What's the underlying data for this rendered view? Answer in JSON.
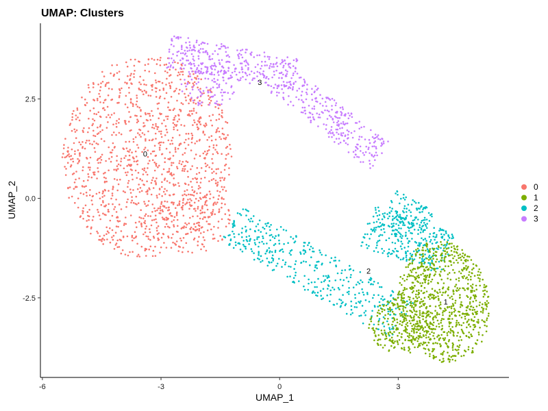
{
  "chart_data": {
    "type": "scatter",
    "title": "UMAP: Clusters",
    "xlabel": "UMAP_1",
    "ylabel": "UMAP_2",
    "xlim": [
      -6.05,
      5.8
    ],
    "ylim": [
      -4.5,
      4.4
    ],
    "xticks": [
      {
        "value": -6,
        "label": "-6"
      },
      {
        "value": -3,
        "label": "-3"
      },
      {
        "value": 0,
        "label": "0"
      },
      {
        "value": 3,
        "label": "3"
      }
    ],
    "yticks": [
      {
        "value": 2.5,
        "label": "2.5"
      },
      {
        "value": 0,
        "label": "0.0"
      },
      {
        "value": -2.5,
        "label": "-2.5"
      }
    ],
    "grid": false,
    "legend_position": "right",
    "series": [
      {
        "name": "0",
        "color": "#F8766D",
        "label_x": -3.4,
        "label_y": 1.12
      },
      {
        "name": "1",
        "color": "#7CAE00",
        "label_x": 4.2,
        "label_y": -2.6
      },
      {
        "name": "2",
        "color": "#00BFC4",
        "label_x": 2.25,
        "label_y": -1.82
      },
      {
        "name": "3",
        "color": "#C77CFF",
        "label_x": -0.5,
        "label_y": 2.92
      }
    ]
  }
}
